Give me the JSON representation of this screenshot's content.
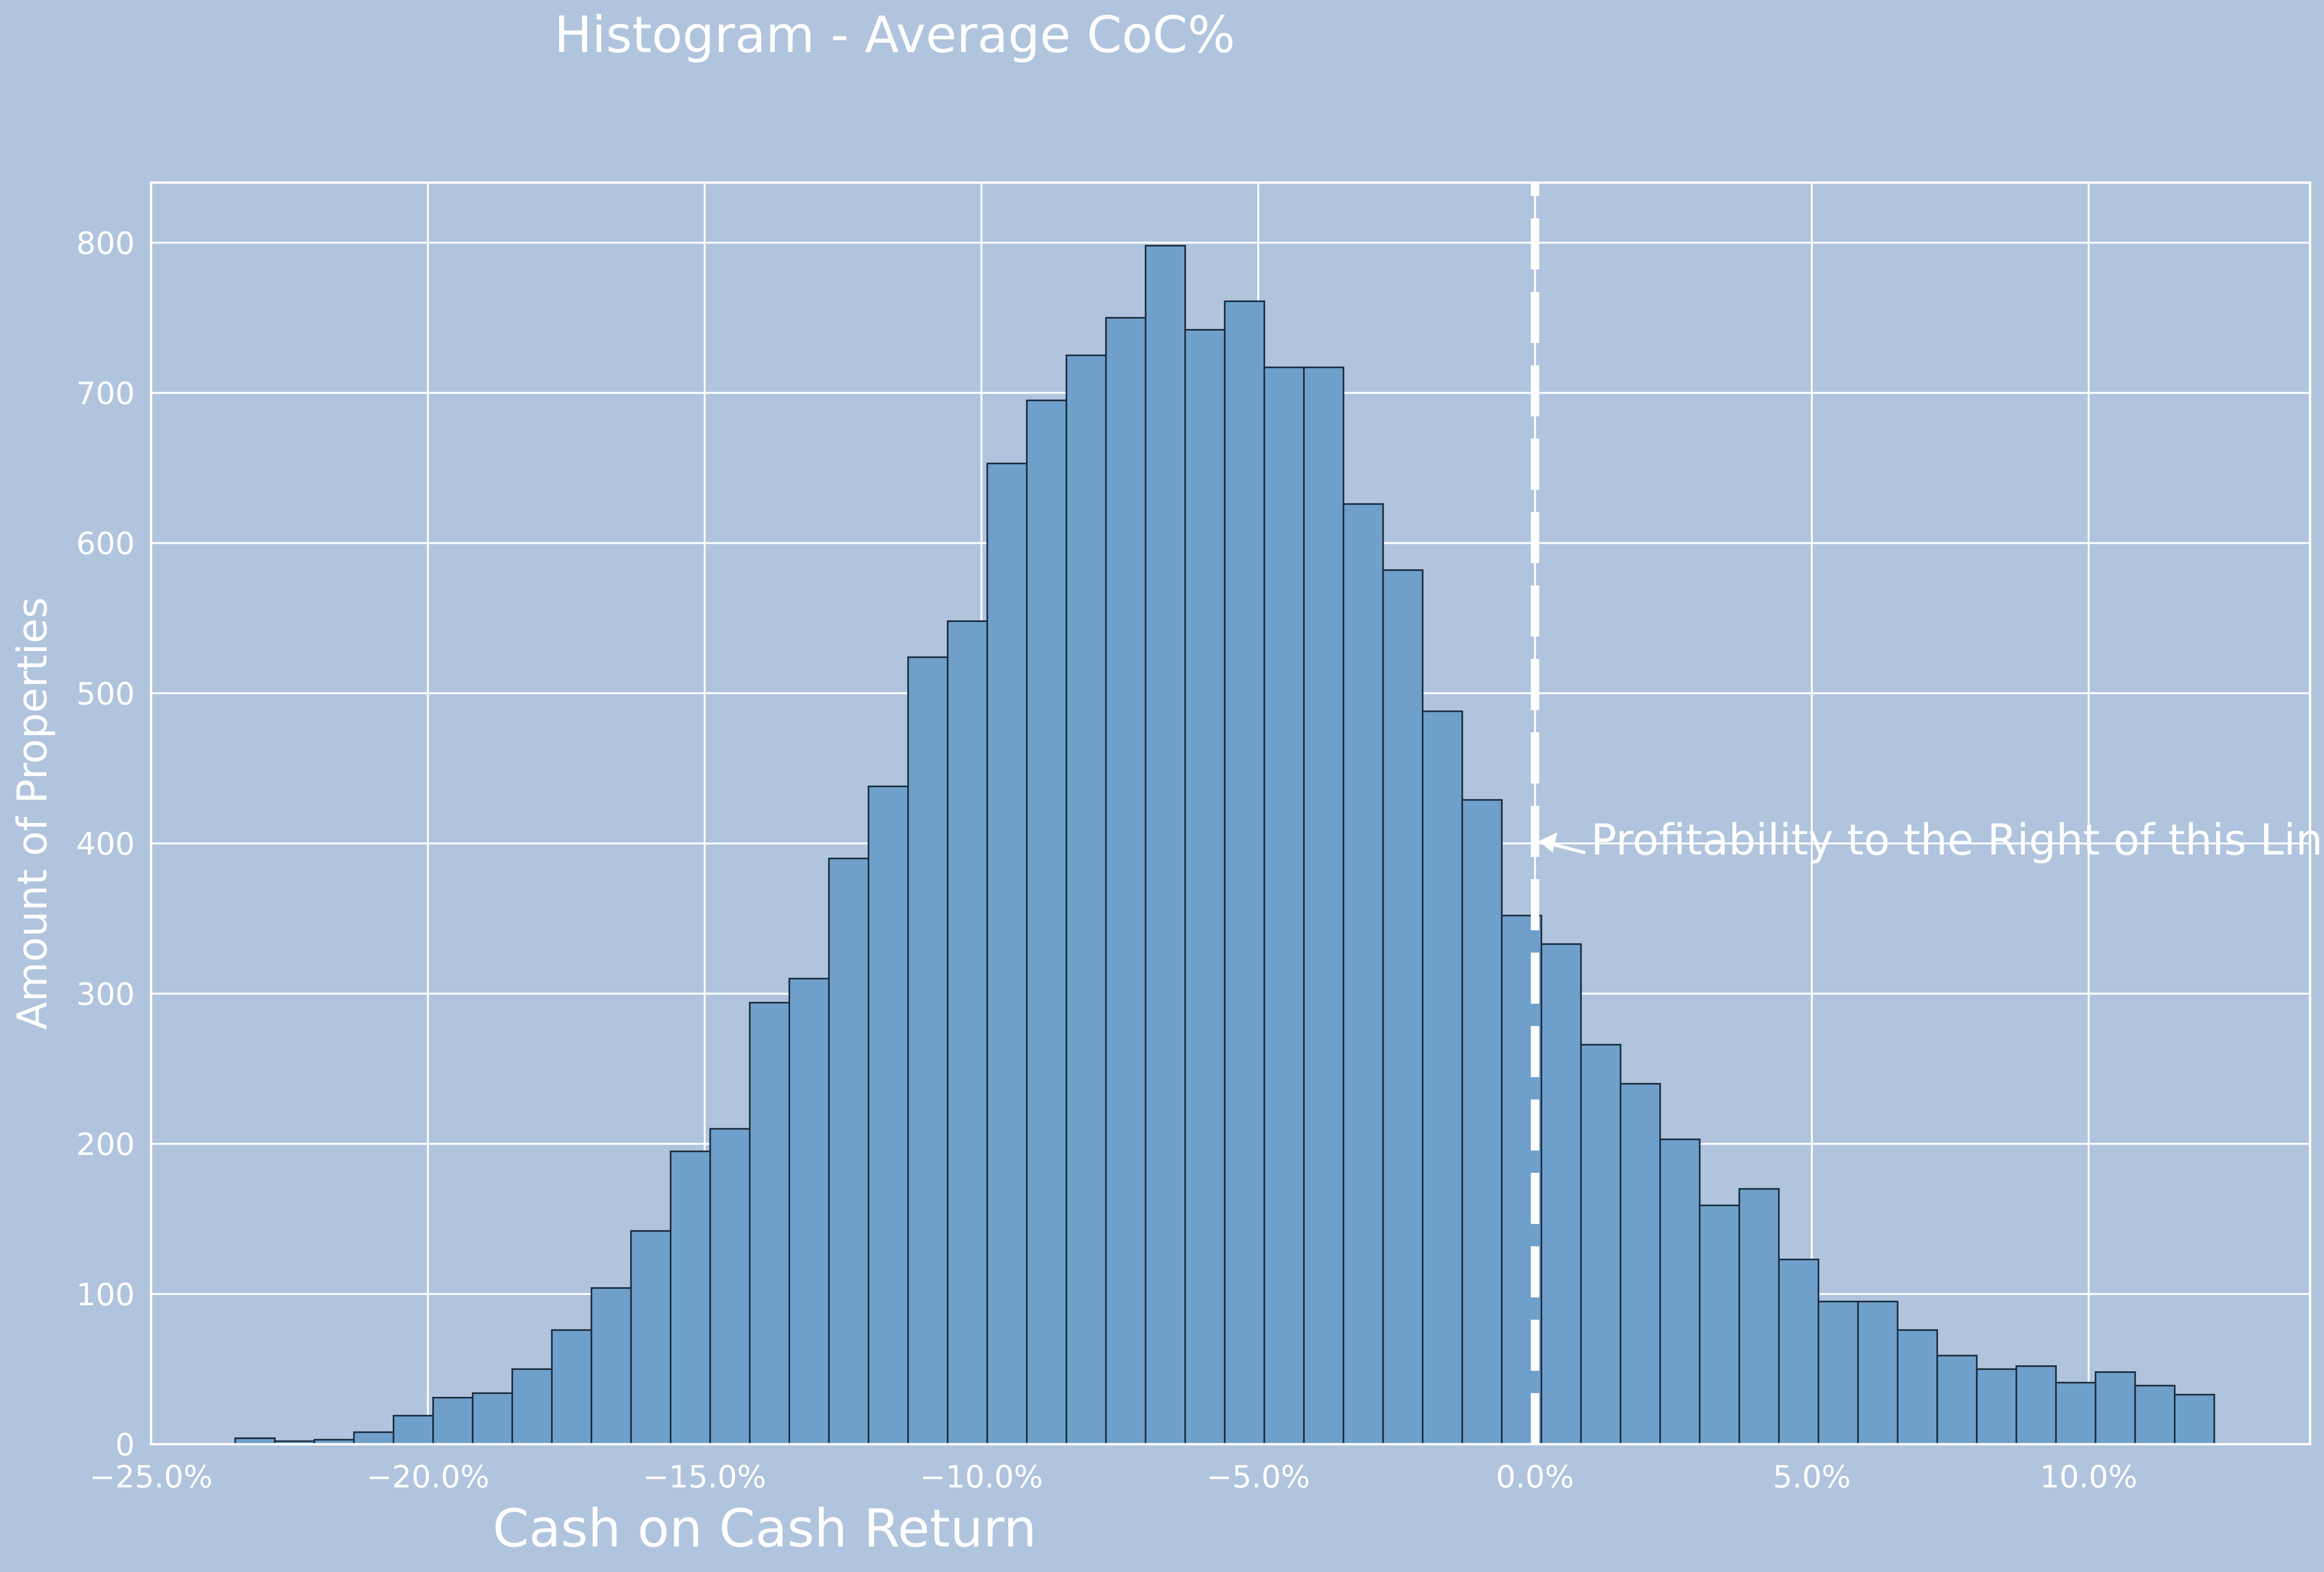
{
  "chart_data": {
    "type": "bar",
    "title": "Histogram - Average CoC%",
    "xlabel": "Cash on Cash Return",
    "ylabel": "Amount of Properties",
    "xlim": [
      -0.25,
      0.14
    ],
    "ylim": [
      0,
      840
    ],
    "x_tick_labels": [
      "−25.0%",
      "−20.0%",
      "−15.0%",
      "−10.0%",
      "−5.0%",
      "0.0%",
      "5.0%",
      "10.0%"
    ],
    "x_tick_values": [
      -0.25,
      -0.2,
      -0.15,
      -0.1,
      -0.05,
      0.0,
      0.05,
      0.1
    ],
    "y_tick_labels": [
      "0",
      "100",
      "200",
      "300",
      "400",
      "500",
      "600",
      "700",
      "800"
    ],
    "y_tick_values": [
      0,
      100,
      200,
      300,
      400,
      500,
      600,
      700,
      800
    ],
    "grid": true,
    "bins": {
      "start": -0.2348,
      "width": 0.00715,
      "counts": [
        4,
        2,
        3,
        8,
        19,
        31,
        34,
        50,
        76,
        104,
        142,
        195,
        210,
        294,
        310,
        390,
        438,
        524,
        548,
        653,
        695,
        725,
        750,
        798,
        742,
        761,
        717,
        717,
        626,
        582,
        488,
        429,
        352,
        333,
        266,
        240,
        203,
        159,
        170,
        123,
        95,
        95,
        76,
        59,
        50,
        52,
        41,
        48,
        39,
        33
      ]
    },
    "threshold_line": {
      "x": 0.0,
      "style": "dashed",
      "color": "#ffffff"
    },
    "annotation": {
      "text": "Profitability to the Right of this Line",
      "x": 0.0,
      "y": 400
    }
  }
}
